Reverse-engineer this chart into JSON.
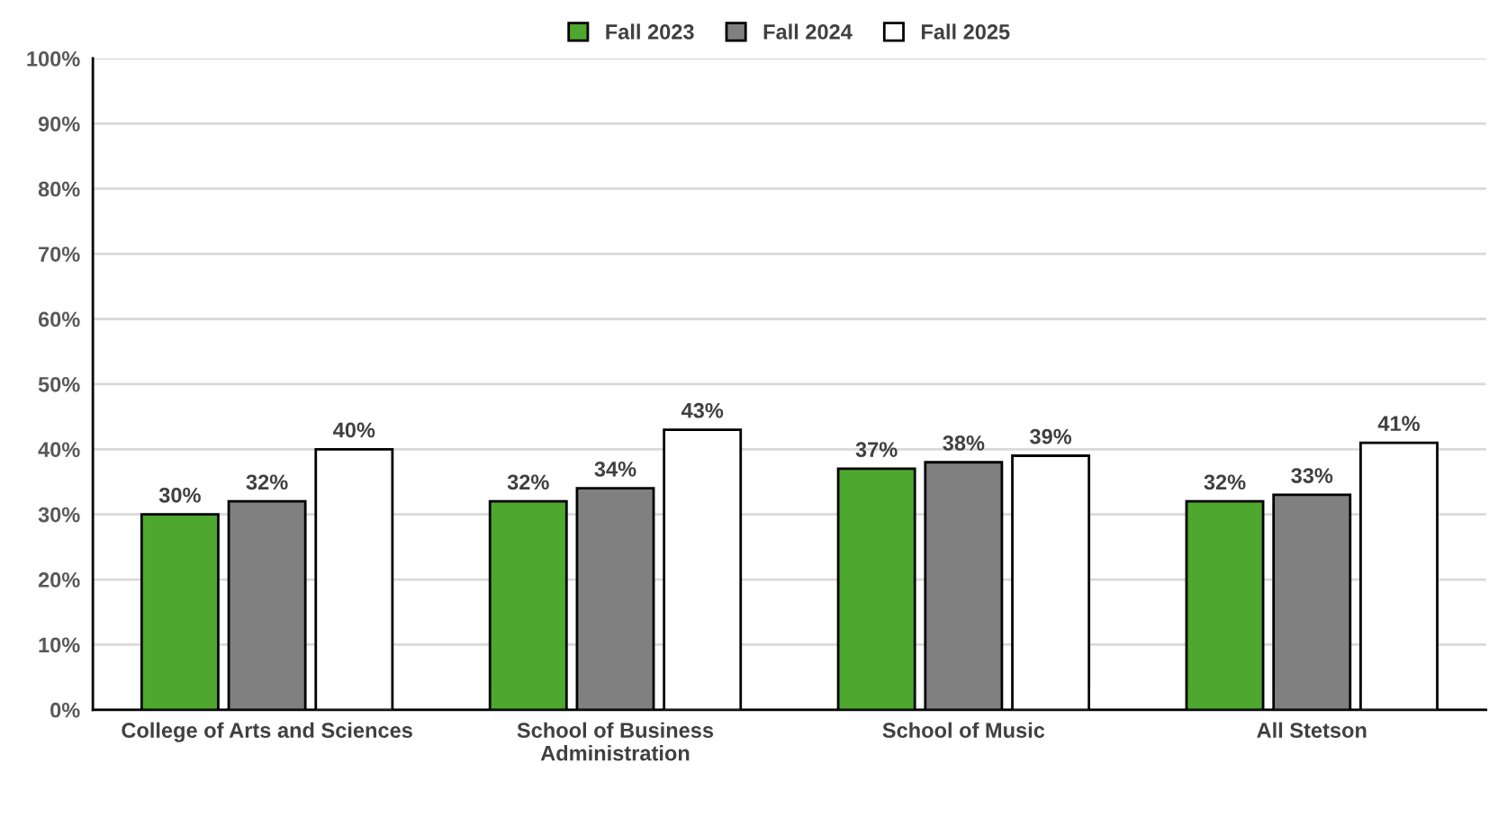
{
  "chart_data": {
    "type": "bar",
    "categories": [
      "College of Arts and Sciences",
      "School of Business Administration",
      "School of Music",
      "All Stetson"
    ],
    "series": [
      {
        "name": "Fall 2023",
        "color": "#4ea72e",
        "values": [
          30,
          32,
          37,
          32
        ],
        "value_labels": [
          "30%",
          "32%",
          "37%",
          "32%"
        ]
      },
      {
        "name": "Fall 2024",
        "color": "#808080",
        "values": [
          32,
          34,
          38,
          33
        ],
        "value_labels": [
          "32%",
          "34%",
          "38%",
          "33%"
        ]
      },
      {
        "name": "Fall 2025",
        "color": "#ffffff",
        "values": [
          40,
          43,
          39,
          41
        ],
        "value_labels": [
          "40%",
          "43%",
          "39%",
          "41%"
        ]
      }
    ],
    "ylim": [
      0,
      100
    ],
    "yticks": [
      {
        "value": 0,
        "label": "0%"
      },
      {
        "value": 10,
        "label": "10%"
      },
      {
        "value": 20,
        "label": "20%"
      },
      {
        "value": 30,
        "label": "30%"
      },
      {
        "value": 40,
        "label": "40%"
      },
      {
        "value": 50,
        "label": "50%"
      },
      {
        "value": 60,
        "label": "60%"
      },
      {
        "value": 70,
        "label": "70%"
      },
      {
        "value": 80,
        "label": "80%"
      },
      {
        "value": 90,
        "label": "90%"
      },
      {
        "value": 100,
        "label": "100%"
      }
    ],
    "grid": "y",
    "legend": "top"
  }
}
